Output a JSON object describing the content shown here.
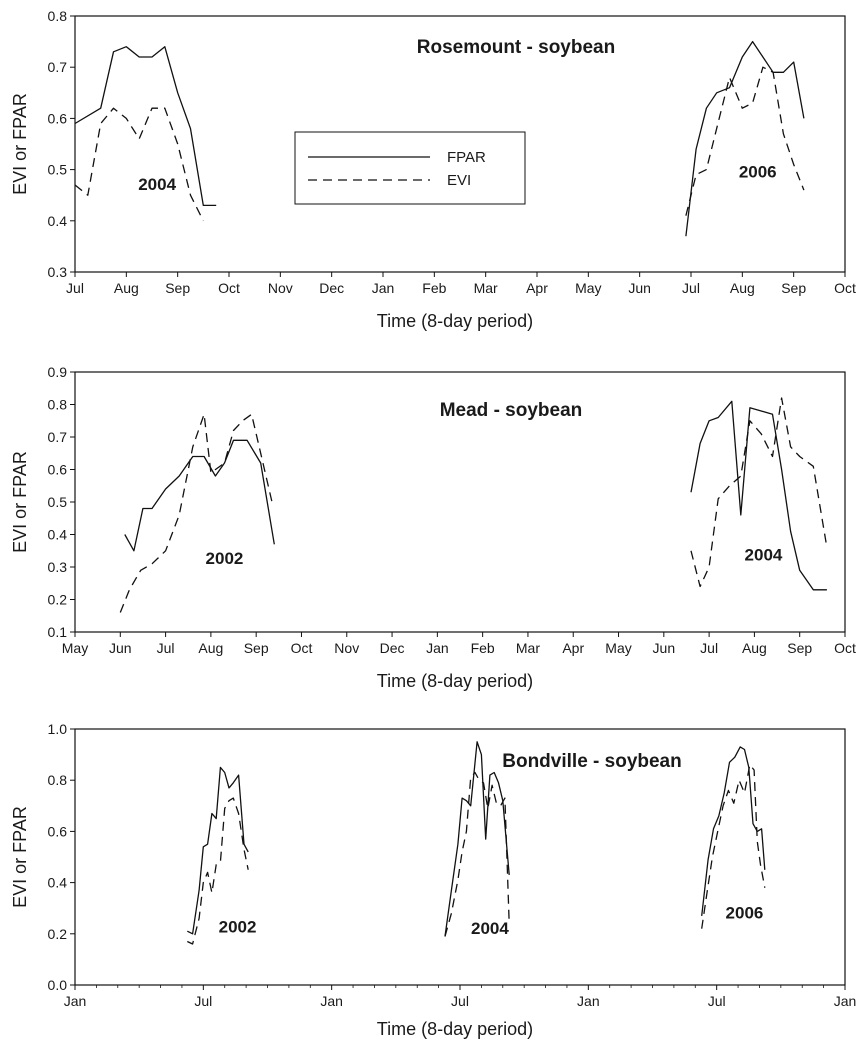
{
  "chart_data": [
    {
      "type": "line",
      "title": "Rosemount - soybean",
      "xlabel": "Time (8-day period)",
      "ylabel": "EVI or FPAR",
      "ylim": [
        0.3,
        0.8
      ],
      "yticks": [
        "0.3",
        "0.4",
        "0.5",
        "0.6",
        "0.7",
        "0.8"
      ],
      "xticks": [
        "Jul",
        "Aug",
        "Sep",
        "Oct",
        "Nov",
        "Dec",
        "Jan",
        "Feb",
        "Mar",
        "Apr",
        "May",
        "Jun",
        "Jul",
        "Aug",
        "Sep",
        "Oct"
      ],
      "x_unit": "months since start of axis",
      "xlim": [
        0,
        15
      ],
      "legend": {
        "placement": "upper-center",
        "entries": [
          "FPAR",
          "EVI"
        ]
      },
      "annotations": [
        {
          "text": "2004",
          "x": 1.6,
          "y": 0.46
        },
        {
          "text": "2006",
          "x": 13.3,
          "y": 0.485
        }
      ],
      "series": [
        {
          "name": "FPAR",
          "style": "solid",
          "segments": [
            {
              "x": [
                0,
                0.5,
                0.75,
                1.0,
                1.25,
                1.5,
                1.75,
                2.0,
                2.25,
                2.5,
                2.75
              ],
              "y": [
                0.59,
                0.62,
                0.73,
                0.74,
                0.72,
                0.72,
                0.74,
                0.65,
                0.58,
                0.43,
                0.43
              ]
            },
            {
              "x": [
                11.9,
                12.1,
                12.3,
                12.5,
                12.75,
                13.0,
                13.2,
                13.4,
                13.6,
                13.8,
                14.0,
                14.2
              ],
              "y": [
                0.37,
                0.54,
                0.62,
                0.65,
                0.66,
                0.72,
                0.75,
                0.72,
                0.69,
                0.69,
                0.71,
                0.6
              ]
            }
          ]
        },
        {
          "name": "EVI",
          "style": "dashed",
          "segments": [
            {
              "x": [
                0,
                0.25,
                0.5,
                0.75,
                1.0,
                1.25,
                1.5,
                1.75,
                2.0,
                2.25,
                2.5
              ],
              "y": [
                0.47,
                0.45,
                0.59,
                0.62,
                0.6,
                0.56,
                0.62,
                0.62,
                0.55,
                0.45,
                0.4
              ]
            },
            {
              "x": [
                11.9,
                12.1,
                12.3,
                12.55,
                12.75,
                13.0,
                13.2,
                13.4,
                13.6,
                13.8,
                14.0,
                14.2
              ],
              "y": [
                0.41,
                0.49,
                0.5,
                0.6,
                0.68,
                0.62,
                0.63,
                0.7,
                0.69,
                0.57,
                0.51,
                0.46
              ]
            }
          ]
        }
      ]
    },
    {
      "type": "line",
      "title": "Mead - soybean",
      "xlabel": "Time (8-day period)",
      "ylabel": "EVI or FPAR",
      "ylim": [
        0.1,
        0.9
      ],
      "yticks": [
        "0.1",
        "0.2",
        "0.3",
        "0.4",
        "0.5",
        "0.6",
        "0.7",
        "0.8",
        "0.9"
      ],
      "xticks": [
        "May",
        "Jun",
        "Jul",
        "Aug",
        "Sep",
        "Oct",
        "Nov",
        "Dec",
        "Jan",
        "Feb",
        "Mar",
        "Apr",
        "May",
        "Jun",
        "Jul",
        "Aug",
        "Sep",
        "Oct"
      ],
      "x_unit": "months since start of axis",
      "xlim": [
        0,
        17
      ],
      "annotations": [
        {
          "text": "2002",
          "x": 3.3,
          "y": 0.31
        },
        {
          "text": "2004",
          "x": 15.2,
          "y": 0.32
        }
      ],
      "series": [
        {
          "name": "FPAR",
          "style": "solid",
          "segments": [
            {
              "x": [
                1.1,
                1.3,
                1.5,
                1.7,
                2.0,
                2.3,
                2.6,
                2.85,
                3.1,
                3.3,
                3.5,
                3.8,
                4.1,
                4.4
              ],
              "y": [
                0.4,
                0.35,
                0.48,
                0.48,
                0.54,
                0.58,
                0.64,
                0.64,
                0.58,
                0.62,
                0.69,
                0.69,
                0.62,
                0.37
              ]
            },
            {
              "x": [
                13.6,
                13.8,
                14.0,
                14.2,
                14.5,
                14.7,
                14.9,
                15.15,
                15.4,
                15.6,
                15.8,
                16.0,
                16.3,
                16.6
              ],
              "y": [
                0.53,
                0.68,
                0.75,
                0.76,
                0.81,
                0.46,
                0.79,
                0.78,
                0.77,
                0.6,
                0.41,
                0.29,
                0.23,
                0.23
              ]
            }
          ]
        },
        {
          "name": "EVI",
          "style": "dashed",
          "segments": [
            {
              "x": [
                1.0,
                1.2,
                1.45,
                1.7,
                2.0,
                2.3,
                2.6,
                2.85,
                3.0,
                3.3,
                3.5,
                3.7,
                3.9,
                4.1,
                4.35
              ],
              "y": [
                0.16,
                0.23,
                0.29,
                0.31,
                0.35,
                0.46,
                0.67,
                0.77,
                0.59,
                0.62,
                0.72,
                0.75,
                0.77,
                0.65,
                0.5
              ]
            },
            {
              "x": [
                13.6,
                13.8,
                14.0,
                14.2,
                14.45,
                14.7,
                14.9,
                15.15,
                15.4,
                15.6,
                15.8,
                16.0,
                16.3,
                16.6
              ],
              "y": [
                0.35,
                0.24,
                0.3,
                0.51,
                0.55,
                0.58,
                0.75,
                0.71,
                0.64,
                0.82,
                0.67,
                0.64,
                0.61,
                0.36
              ]
            }
          ]
        }
      ]
    },
    {
      "type": "line",
      "title": "Bondville - soybean",
      "xlabel": "Time (8-day period)",
      "ylabel": "EVI or FPAR",
      "ylim": [
        0.0,
        1.0
      ],
      "yticks": [
        "0.0",
        "0.2",
        "0.4",
        "0.6",
        "0.8",
        "1.0"
      ],
      "xticks": [
        "Jan",
        "Jul",
        "Jan",
        "Jul",
        "Jan",
        "Jul",
        "Jan"
      ],
      "x_unit": "months since start of axis",
      "xlim": [
        0,
        36
      ],
      "annotations": [
        {
          "text": "2002",
          "x": 7.6,
          "y": 0.205
        },
        {
          "text": "2004",
          "x": 19.4,
          "y": 0.2
        },
        {
          "text": "2006",
          "x": 31.3,
          "y": 0.26
        }
      ],
      "series": [
        {
          "name": "FPAR",
          "style": "solid",
          "segments": [
            {
              "x": [
                5.25,
                5.5,
                5.8,
                6.0,
                6.2,
                6.4,
                6.6,
                6.8,
                7.0,
                7.2,
                7.4,
                7.65,
                7.9,
                8.1
              ],
              "y": [
                0.21,
                0.2,
                0.37,
                0.54,
                0.55,
                0.67,
                0.65,
                0.85,
                0.83,
                0.77,
                0.79,
                0.82,
                0.55,
                0.52
              ]
            },
            {
              "x": [
                17.3,
                17.6,
                17.9,
                18.1,
                18.3,
                18.5,
                18.8,
                19.0,
                19.2,
                19.4,
                19.6,
                19.8,
                20.0,
                20.3
              ],
              "y": [
                0.19,
                0.37,
                0.55,
                0.73,
                0.72,
                0.7,
                0.95,
                0.9,
                0.57,
                0.82,
                0.83,
                0.79,
                0.72,
                0.43
              ]
            },
            {
              "x": [
                29.3,
                29.6,
                29.85,
                30.1,
                30.35,
                30.6,
                30.85,
                31.1,
                31.3,
                31.5,
                31.7,
                31.9,
                32.1,
                32.25
              ],
              "y": [
                0.27,
                0.49,
                0.61,
                0.66,
                0.75,
                0.87,
                0.89,
                0.93,
                0.92,
                0.85,
                0.63,
                0.6,
                0.61,
                0.45
              ]
            }
          ]
        },
        {
          "name": "EVI",
          "style": "dashed",
          "segments": [
            {
              "x": [
                5.25,
                5.5,
                5.8,
                6.0,
                6.2,
                6.4,
                6.6,
                6.8,
                7.0,
                7.2,
                7.4,
                7.65,
                7.9,
                8.1
              ],
              "y": [
                0.17,
                0.16,
                0.26,
                0.4,
                0.44,
                0.36,
                0.47,
                0.48,
                0.69,
                0.72,
                0.73,
                0.67,
                0.53,
                0.45
              ]
            },
            {
              "x": [
                17.3,
                17.6,
                17.9,
                18.1,
                18.3,
                18.5,
                18.7,
                18.9,
                19.1,
                19.3,
                19.5,
                19.7,
                19.9,
                20.1,
                20.3
              ],
              "y": [
                0.19,
                0.28,
                0.41,
                0.52,
                0.6,
                0.81,
                0.83,
                0.8,
                0.79,
                0.69,
                0.78,
                0.71,
                0.7,
                0.73,
                0.24
              ]
            },
            {
              "x": [
                29.3,
                29.55,
                29.8,
                30.05,
                30.3,
                30.55,
                30.8,
                31.05,
                31.3,
                31.55,
                31.75,
                31.9,
                32.05,
                32.25
              ],
              "y": [
                0.22,
                0.36,
                0.5,
                0.6,
                0.7,
                0.76,
                0.71,
                0.8,
                0.75,
                0.86,
                0.84,
                0.56,
                0.47,
                0.38
              ]
            }
          ]
        }
      ]
    }
  ]
}
